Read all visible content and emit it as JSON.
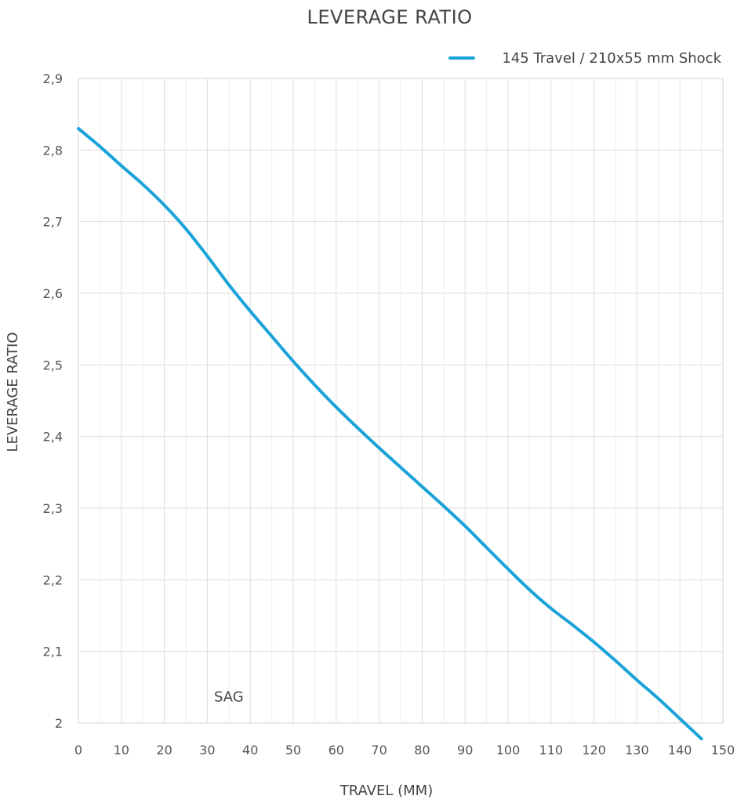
{
  "chart_data": {
    "type": "line",
    "title": "LEVERAGE RATIO",
    "xlabel": "TRAVEL (MM)",
    "ylabel": "LEVERAGE RATIO",
    "xlim": [
      0,
      150
    ],
    "ylim": [
      2,
      2.9
    ],
    "x_ticks": [
      0,
      10,
      20,
      30,
      40,
      50,
      60,
      70,
      80,
      90,
      100,
      110,
      120,
      130,
      140,
      150
    ],
    "x_tick_labels": [
      "0",
      "10",
      "20",
      "30",
      "40",
      "50",
      "60",
      "70",
      "80",
      "90",
      "100",
      "110",
      "120",
      "130",
      "140",
      "150"
    ],
    "y_ticks": [
      2,
      2.1,
      2.2,
      2.3,
      2.4,
      2.5,
      2.6,
      2.7,
      2.8,
      2.9
    ],
    "y_tick_labels": [
      "2",
      "2,1",
      "2,2",
      "2,3",
      "2,4",
      "2,5",
      "2,6",
      "2,7",
      "2,8",
      "2,9"
    ],
    "grid": true,
    "legend_position": "top-right",
    "series": [
      {
        "name": "145 Travel / 210x55 mm Shock",
        "color": "#1aa3d9",
        "x": [
          0,
          5,
          10,
          15,
          20,
          25,
          30,
          35,
          40,
          45,
          50,
          55,
          60,
          65,
          70,
          75,
          80,
          85,
          90,
          95,
          100,
          105,
          110,
          115,
          120,
          125,
          130,
          135,
          140,
          145
        ],
        "y": [
          2.83,
          2.805,
          2.778,
          2.752,
          2.723,
          2.69,
          2.652,
          2.612,
          2.575,
          2.54,
          2.505,
          2.472,
          2.441,
          2.412,
          2.384,
          2.357,
          2.33,
          2.303,
          2.275,
          2.245,
          2.215,
          2.186,
          2.16,
          2.137,
          2.113,
          2.087,
          2.06,
          2.034,
          2.006,
          1.978
        ]
      }
    ],
    "annotations": [
      {
        "text": "SAG",
        "x": 35,
        "y": 2.03
      }
    ]
  }
}
